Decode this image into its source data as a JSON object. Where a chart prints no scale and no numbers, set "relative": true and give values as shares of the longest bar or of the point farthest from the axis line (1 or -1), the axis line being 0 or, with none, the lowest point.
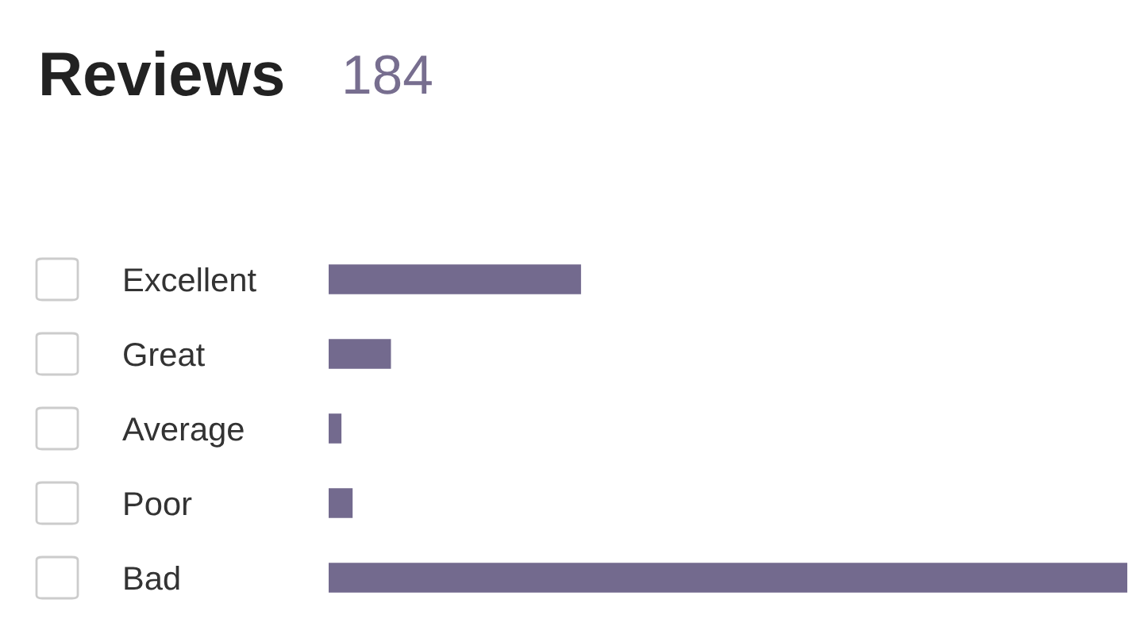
{
  "chart_data": {
    "type": "bar",
    "orientation": "horizontal",
    "relative": true,
    "title": "Reviews",
    "subtitle": "184",
    "categories": [
      "Excellent",
      "Great",
      "Average",
      "Poor",
      "Bad"
    ],
    "values": [
      0.316,
      0.078,
      0.016,
      0.03,
      1
    ],
    "color": "#736a8e",
    "grid": false,
    "legend": false
  }
}
